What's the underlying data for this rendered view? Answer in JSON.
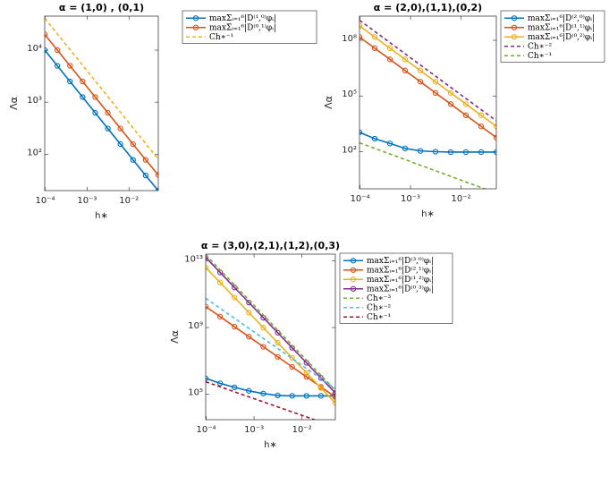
{
  "chart_data": [
    {
      "type": "line",
      "title": "α = (1,0) , (0,1)",
      "x_label": "h∗",
      "y_label": "Λα",
      "log_x": true,
      "log_y": true,
      "grid": false,
      "x": [
        9.765625e-05,
        0.0001953125,
        0.000390625,
        0.00078125,
        0.0015625,
        0.003125,
        0.00625,
        0.0125,
        0.025,
        0.05
      ],
      "xlim": [
        9.765625e-05,
        0.05
      ],
      "xticks": [
        {
          "value": 0.0001,
          "label": "10⁻⁴"
        },
        {
          "value": 0.001,
          "label": "10⁻³"
        },
        {
          "value": 0.01,
          "label": "10⁻²"
        }
      ],
      "ylim": [
        20,
        45000
      ],
      "yticks": [
        {
          "value": 100,
          "label": "10²"
        },
        {
          "value": 1000,
          "label": "10³"
        },
        {
          "value": 10000,
          "label": "10⁴"
        }
      ],
      "series": [
        {
          "name": "maxΣᵢ₌₁⁶|D⁽¹,⁰⁾φᵢ|",
          "color": "#0072bd",
          "marker": "o",
          "values": [
            10000,
            5000,
            2500,
            1250,
            625,
            312,
            156,
            78,
            39,
            20
          ]
        },
        {
          "name": "maxΣᵢ₌₁⁶|D⁽⁰,¹⁾φᵢ|",
          "color": "#d95319",
          "marker": "o",
          "values": [
            20000,
            10000,
            5000,
            2500,
            1250,
            625,
            312,
            156,
            78,
            40
          ]
        },
        {
          "name": "Ch∗⁻¹",
          "color": "#edb120",
          "dashed": true,
          "values": [
            40960,
            20480,
            10240,
            5120,
            2560,
            1280,
            640,
            320,
            160,
            80
          ]
        }
      ]
    },
    {
      "type": "line",
      "title": "α = (2,0),(1,1),(0,2)",
      "x_label": "h∗",
      "y_label": "Λα",
      "log_x": true,
      "log_y": true,
      "grid": false,
      "x": [
        9.765625e-05,
        0.0001953125,
        0.000390625,
        0.00078125,
        0.0015625,
        0.003125,
        0.00625,
        0.0125,
        0.025,
        0.05
      ],
      "xlim": [
        9.765625e-05,
        0.05
      ],
      "xticks": [
        {
          "value": 0.0001,
          "label": "10⁻⁴"
        },
        {
          "value": 0.001,
          "label": "10⁻³"
        },
        {
          "value": 0.01,
          "label": "10⁻²"
        }
      ],
      "ylim": [
        1,
        2000000000
      ],
      "yticks": [
        {
          "value": 100,
          "label": "10²"
        },
        {
          "value": 100000,
          "label": "10⁵"
        },
        {
          "value": 100000000,
          "label": "10⁸"
        }
      ],
      "series": [
        {
          "name": "maxΣᵢ₌₁⁶|D⁽²,⁰⁾φᵢ|",
          "color": "#0072bd",
          "marker": "o",
          "values": [
            1100,
            500,
            280,
            150,
            110,
            100,
            95,
            95,
            95,
            95
          ]
        },
        {
          "name": "maxΣᵢ₌₁⁶|D⁽¹,¹⁾φᵢ|",
          "color": "#d95319",
          "marker": "o",
          "values": [
            150000000,
            37500000,
            9400000,
            2340000,
            586000,
            146000,
            36600,
            9160,
            2290,
            572
          ]
        },
        {
          "name": "maxΣᵢ₌₁⁶|D⁽⁰,²⁾φᵢ|",
          "color": "#edb120",
          "marker": "o",
          "values": [
            600000000,
            150000000,
            37500000,
            9400000,
            2340000,
            586000,
            146000,
            36600,
            9160,
            2290
          ]
        },
        {
          "name": "Ch∗⁻²",
          "color": "#7e2f8e",
          "dashed": true,
          "values": [
            1200000000,
            300000000,
            75000000,
            18750000,
            4690000,
            1170000,
            293000,
            73200,
            18300,
            4580
          ]
        },
        {
          "name": "Ch∗⁻¹",
          "color": "#77ac30",
          "dashed": true,
          "values": [
            300,
            150,
            75,
            37.5,
            18.75,
            9.38,
            4.69,
            2.34,
            1.17,
            0.586
          ]
        }
      ]
    },
    {
      "type": "line",
      "title": "α = (3,0),(2,1),(1,2),(0,3)",
      "x_label": "h∗",
      "y_label": "Λα",
      "log_x": true,
      "log_y": true,
      "grid": false,
      "x": [
        9.765625e-05,
        0.0001953125,
        0.000390625,
        0.00078125,
        0.0015625,
        0.003125,
        0.00625,
        0.0125,
        0.025,
        0.05
      ],
      "xlim": [
        9.765625e-05,
        0.05
      ],
      "xticks": [
        {
          "value": 0.0001,
          "label": "10⁻⁴"
        },
        {
          "value": 0.001,
          "label": "10⁻³"
        },
        {
          "value": 0.01,
          "label": "10⁻²"
        }
      ],
      "ylim": [
        3000,
        25000000000000
      ],
      "yticks": [
        {
          "value": 100000,
          "label": "10⁵"
        },
        {
          "value": 1000000000,
          "label": "10⁹"
        },
        {
          "value": 10000000000000,
          "label": "10¹³"
        }
      ],
      "series": [
        {
          "name": "maxΣᵢ₌₁⁶|D⁽³,⁰⁾φᵢ|",
          "color": "#0072bd",
          "marker": "o",
          "values": [
            900000,
            450000,
            260000,
            160000,
            110000,
            85000,
            80000,
            80000,
            80000,
            80000
          ]
        },
        {
          "name": "maxΣᵢ₌₁⁶|D⁽²,¹⁾φᵢ|",
          "color": "#d95319",
          "marker": "o",
          "values": [
            18000000000,
            4500000000,
            1125000000,
            281000000,
            70300000,
            17600000,
            4390000,
            1100000,
            275000,
            68700
          ]
        },
        {
          "name": "maxΣᵢ₌₁⁶|D⁽¹,²⁾φᵢ|",
          "color": "#edb120",
          "marker": "o",
          "values": [
            4000000000000,
            500000000000,
            62500000000,
            7810000000,
            977000000,
            122000000,
            15300000,
            1910000,
            238000,
            29800
          ]
        },
        {
          "name": "maxΣᵢ₌₁⁶|D⁽⁰,³⁾φᵢ|",
          "color": "#7e2f8e",
          "marker": "o",
          "values": [
            16000000000000,
            2000000000000,
            250000000000,
            31300000000,
            3910000000,
            488000000,
            61000000,
            7630000,
            954000,
            119000
          ]
        },
        {
          "name": "Ch∗⁻³",
          "color": "#77ac30",
          "dashed": true,
          "values": [
            23000000000000,
            2880000000000,
            359000000000,
            44900000000,
            5620000000,
            702000000,
            87700000,
            11000000,
            1370000,
            171000
          ]
        },
        {
          "name": "Ch∗⁻²",
          "color": "#4dbeee",
          "dashed": true,
          "values": [
            57000000000,
            14250000000,
            3560000000,
            891000000,
            223000000,
            55700000,
            13900000,
            3480000,
            870000,
            217000
          ]
        },
        {
          "name": "Ch∗⁻¹",
          "color": "#a2142f",
          "dashed": true,
          "values": [
            560000,
            280000,
            140000,
            70000,
            35000,
            17500,
            8750,
            4380,
            2190,
            1090
          ]
        }
      ]
    }
  ]
}
